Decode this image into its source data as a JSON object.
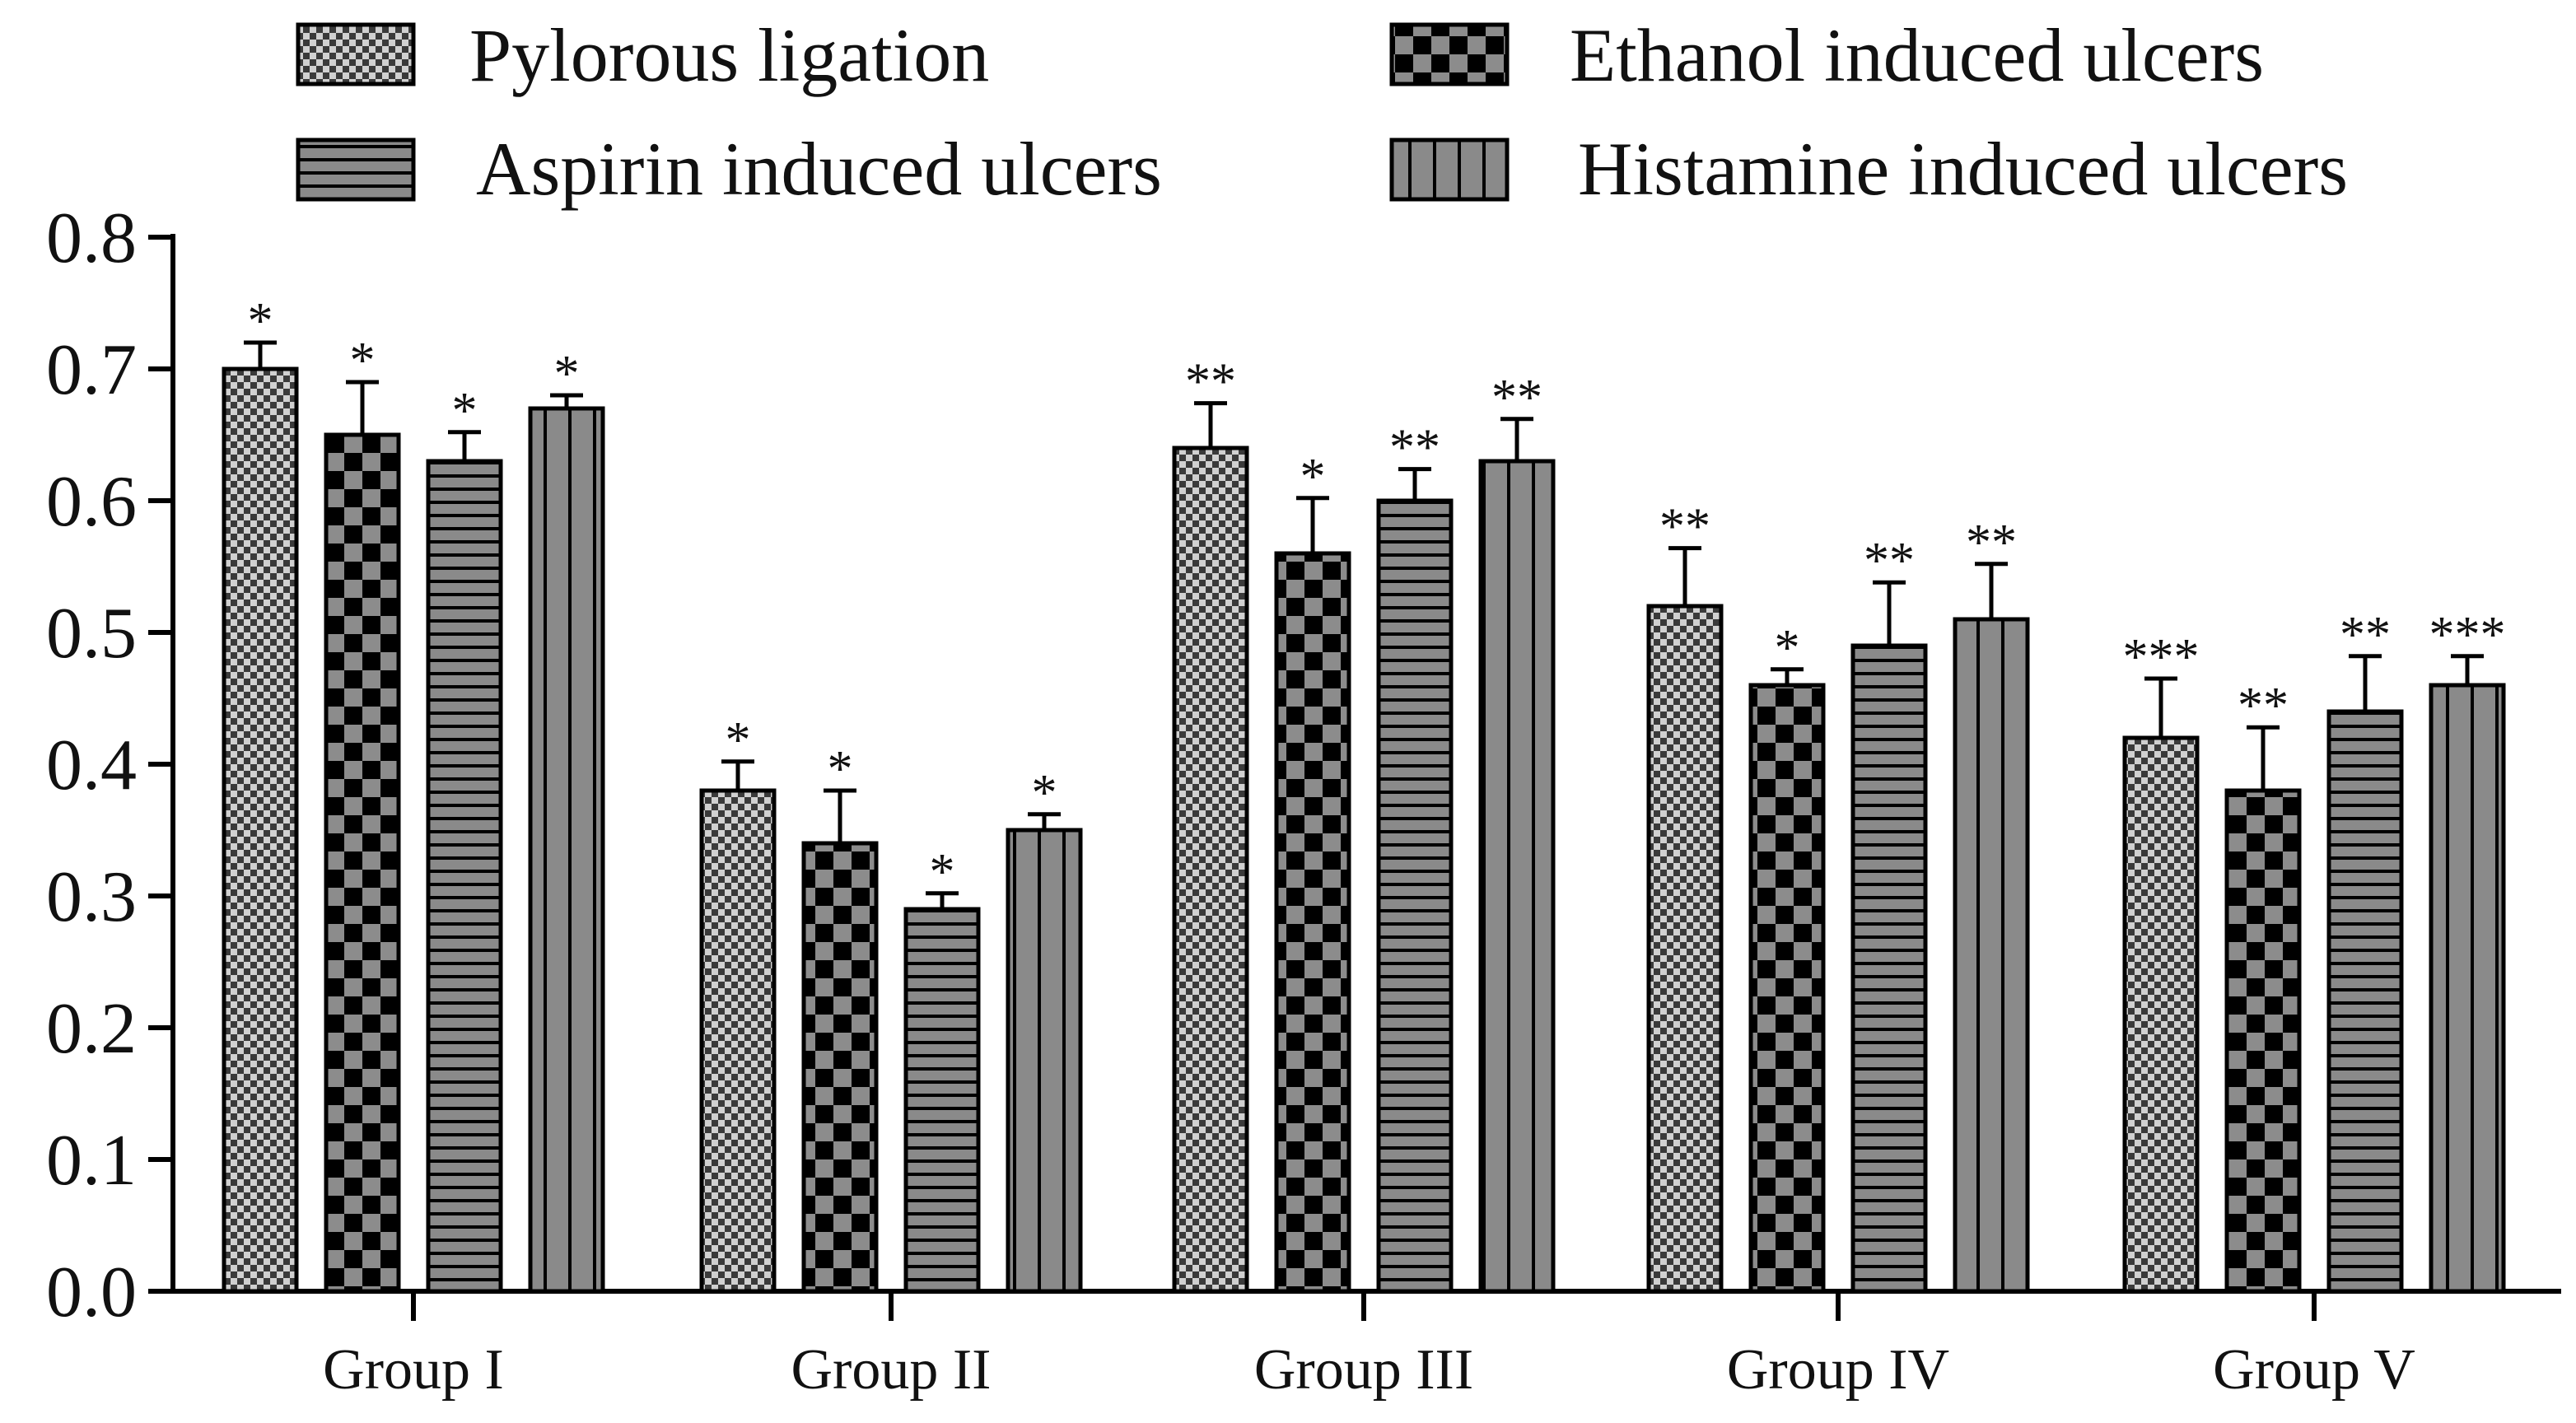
{
  "chart_data": {
    "type": "bar",
    "title": "",
    "xlabel": "",
    "ylabel": "",
    "ylim": [
      0,
      0.8
    ],
    "yticks": [
      "0.0",
      "0.1",
      "0.2",
      "0.3",
      "0.4",
      "0.5",
      "0.6",
      "0.7",
      "0.8"
    ],
    "categories": [
      "Group I",
      "Group II",
      "Group III",
      "Group IV",
      "Group V"
    ],
    "legend_position": "top",
    "series": [
      {
        "name": "Pylorous ligation",
        "pattern": "fine-checker",
        "values": [
          0.7,
          0.38,
          0.64,
          0.52,
          0.42
        ],
        "errors": [
          0.02,
          0.022,
          0.034,
          0.044,
          0.045
        ],
        "significance": [
          "*",
          "*",
          "**",
          "**",
          "***"
        ]
      },
      {
        "name": "Ethanol induced ulcers",
        "pattern": "coarse-checker",
        "values": [
          0.65,
          0.34,
          0.56,
          0.46,
          0.38
        ],
        "errors": [
          0.04,
          0.04,
          0.042,
          0.012,
          0.048
        ],
        "significance": [
          "*",
          "*",
          "*",
          "*",
          "**"
        ]
      },
      {
        "name": "Aspirin induced ulcers",
        "pattern": "horizontal-lines",
        "values": [
          0.63,
          0.29,
          0.6,
          0.49,
          0.44
        ],
        "errors": [
          0.022,
          0.012,
          0.024,
          0.048,
          0.042
        ],
        "significance": [
          "*",
          "*",
          "**",
          "**",
          "**"
        ]
      },
      {
        "name": "Histamine induced ulcers",
        "pattern": "vertical-lines",
        "values": [
          0.67,
          0.35,
          0.63,
          0.51,
          0.46
        ],
        "errors": [
          0.01,
          0.012,
          0.032,
          0.042,
          0.022
        ],
        "significance": [
          "*",
          "*",
          "**",
          "**",
          "***"
        ]
      }
    ],
    "colors": {
      "bar_fill": "#8a8a8a",
      "dark": "#000000",
      "light": "#cfcfcf",
      "axis": "#000000"
    }
  }
}
